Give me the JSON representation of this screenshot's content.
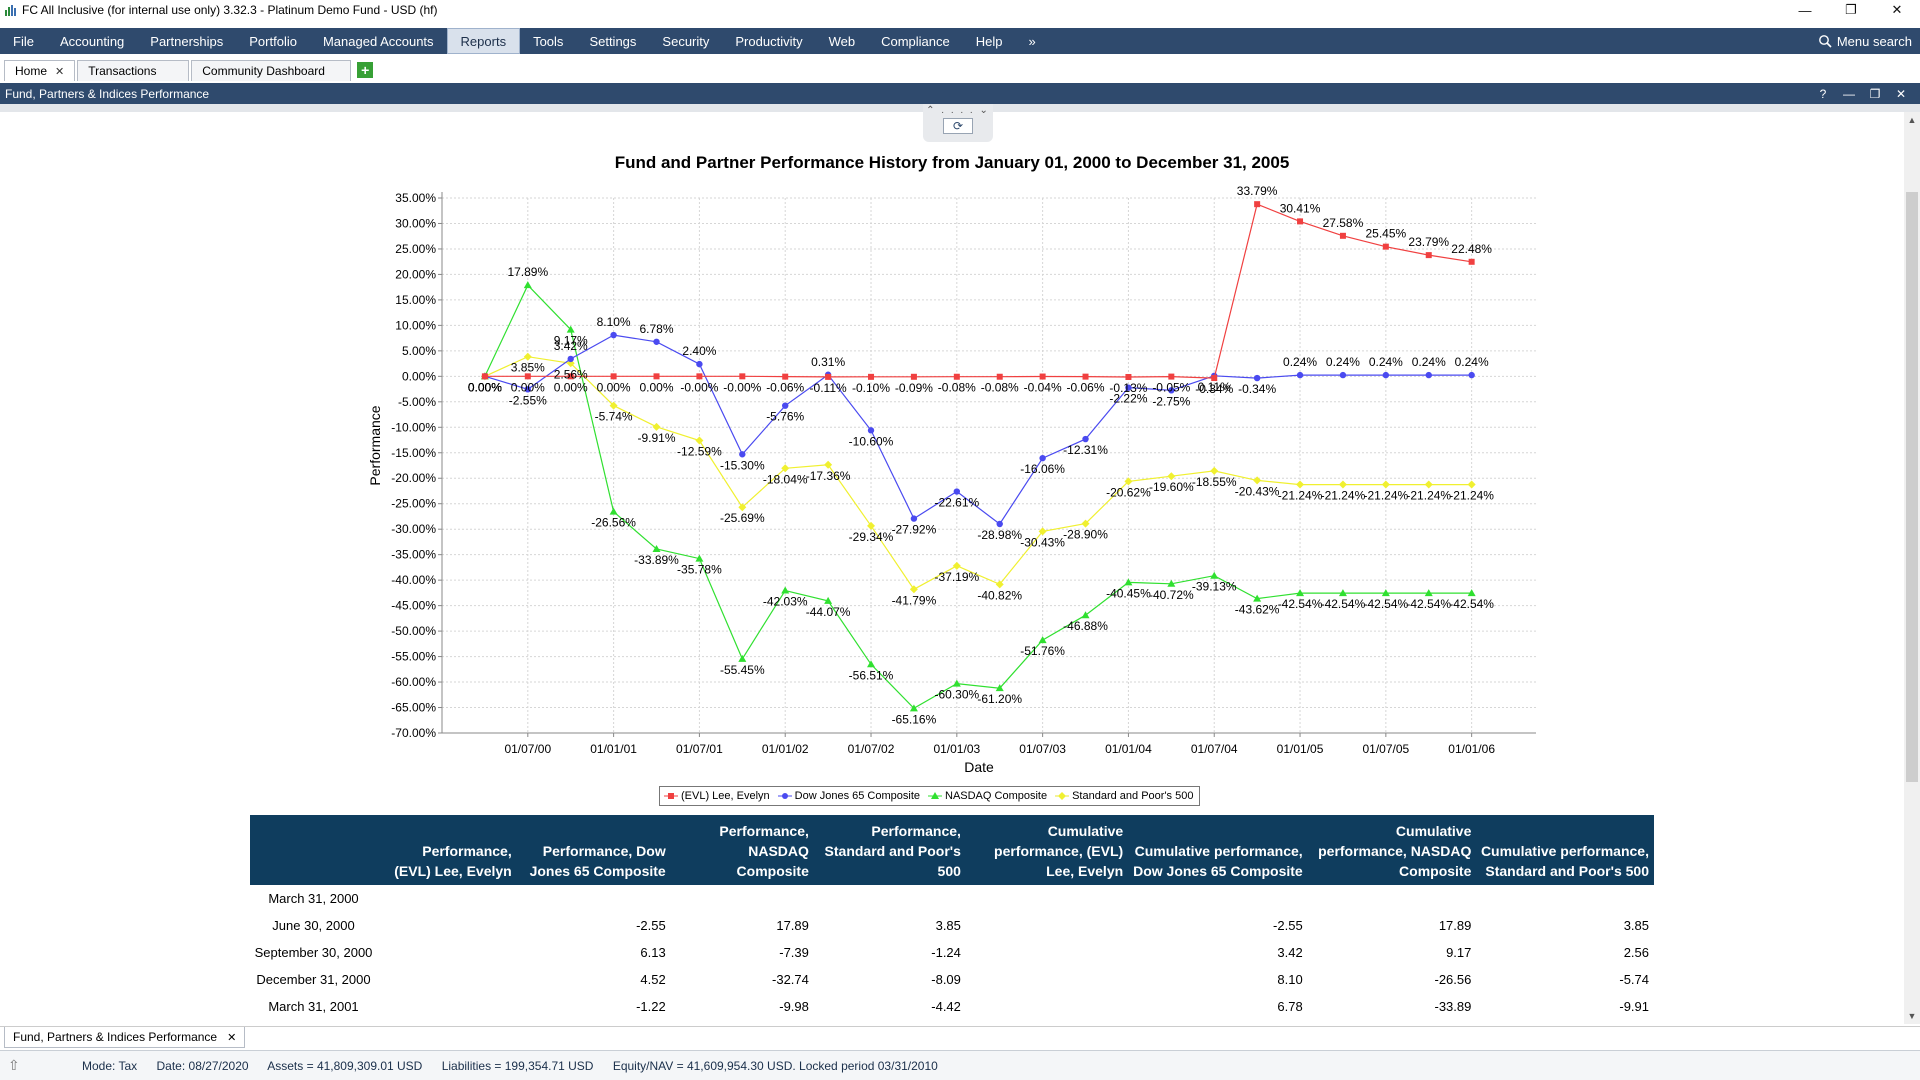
{
  "window": {
    "title": "FC All Inclusive (for internal use only) 3.32.3 - Platinum Demo Fund - USD (hf)",
    "minimize": "—",
    "maximize": "❐",
    "close": "✕"
  },
  "menu": {
    "items": [
      "File",
      "Accounting",
      "Partnerships",
      "Portfolio",
      "Managed Accounts",
      "Reports",
      "Tools",
      "Settings",
      "Security",
      "Productivity",
      "Web",
      "Compliance",
      "Help"
    ],
    "active": "Reports",
    "overflow": "»",
    "search_label": "Menu search"
  },
  "tabs": [
    {
      "label": "Home",
      "close": "✕"
    },
    {
      "label": "Transactions"
    },
    {
      "label": "Community Dashboard"
    }
  ],
  "tab_add": "+",
  "panel": {
    "title": "Fund,  Partners & Indices Performance",
    "help": "?",
    "minimize": "—",
    "restore": "❐",
    "close": "✕"
  },
  "splitter": {
    "arrows": "⌃ . . . . ⌄",
    "refresh": "⟳"
  },
  "chart_data": {
    "type": "line",
    "title": "Fund and Partner Performance History from January 01, 2000 to December 31, 2005",
    "xlabel": "Date",
    "ylabel": "Performance",
    "ylim": [
      -70,
      35
    ],
    "yticks": [
      "35.00%",
      "30.00%",
      "25.00%",
      "20.00%",
      "15.00%",
      "10.00%",
      "5.00%",
      "0.00%",
      "-5.00%",
      "-10.00%",
      "-15.00%",
      "-20.00%",
      "-25.00%",
      "-30.00%",
      "-35.00%",
      "-40.00%",
      "-45.00%",
      "-50.00%",
      "-55.00%",
      "-60.00%",
      "-65.00%",
      "-70.00%"
    ],
    "ytick_values": [
      35,
      30,
      25,
      20,
      15,
      10,
      5,
      0,
      -5,
      -10,
      -15,
      -20,
      -25,
      -30,
      -35,
      -40,
      -45,
      -50,
      -55,
      -60,
      -65,
      -70
    ],
    "xticks": [
      "01/07/00",
      "01/01/01",
      "01/07/01",
      "01/01/02",
      "01/07/02",
      "01/01/03",
      "01/07/03",
      "01/01/04",
      "01/07/04",
      "01/01/05",
      "01/07/05",
      "01/01/06"
    ],
    "xtick_positions": [
      1,
      3,
      5,
      7,
      9,
      11,
      13,
      15,
      17,
      19,
      21,
      23
    ],
    "xlim": [
      -1,
      24.5
    ],
    "x": [
      0,
      1,
      2,
      3,
      4,
      5,
      6,
      7,
      8,
      9,
      10,
      11,
      12,
      13,
      14,
      15,
      16,
      17,
      18,
      19,
      20,
      21,
      22,
      23
    ],
    "grid": true,
    "legend": "bottom-center",
    "series": [
      {
        "name": "(EVL) Lee, Evelyn",
        "color": "#f04040",
        "marker": "square",
        "values": [
          0,
          0,
          0,
          0,
          0,
          -0.0,
          -0.0,
          -0.06,
          -0.11,
          -0.1,
          -0.09,
          -0.08,
          -0.08,
          -0.04,
          -0.06,
          -0.13,
          -0.05,
          -0.34,
          33.79,
          30.41,
          27.58,
          25.45,
          23.79,
          22.48
        ],
        "labels": [
          "0.00%",
          "0.00%",
          "0.00%",
          "0.00%",
          "0.00%",
          "-0.00%",
          "-0.00%",
          "-0.06%",
          "-0.11%",
          "-0.10%",
          "-0.09%",
          "-0.08%",
          "-0.08%",
          "-0.04%",
          "-0.06%",
          "-0.13%",
          "-0.05%",
          "-0.34%",
          "33.79%",
          "30.41%",
          "27.58%",
          "25.45%",
          "23.79%",
          "22.48%"
        ]
      },
      {
        "name": "Dow Jones 65 Composite",
        "color": "#4a4af0",
        "marker": "circle",
        "values": [
          0,
          -2.55,
          3.42,
          8.1,
          6.78,
          2.4,
          -15.3,
          -5.76,
          0.31,
          -10.6,
          -27.92,
          -22.61,
          -28.98,
          -16.06,
          -12.31,
          -2.22,
          -2.75,
          0.11,
          -0.34,
          0.24,
          0.24,
          0.24,
          0.24,
          0.24
        ],
        "labels": [
          "0.00%",
          "-2.55%",
          "3.42%",
          "8.10%",
          "6.78%",
          "2.40%",
          "-15.30%",
          "-5.76%",
          "0.31%",
          "-10.60%",
          "-27.92%",
          "-22.61%",
          "-28.98%",
          "-16.06%",
          "-12.31%",
          "-2.22%",
          "-2.75%",
          "0.11%",
          "-0.34%",
          "0.24%",
          "0.24%",
          "0.24%",
          "0.24%",
          "0.24%"
        ]
      },
      {
        "name": "NASDAQ Composite",
        "color": "#30e030",
        "marker": "triangle",
        "values": [
          0,
          17.89,
          9.17,
          -26.56,
          -33.89,
          -35.78,
          -55.45,
          -42.03,
          -44.07,
          -56.51,
          -65.16,
          -60.3,
          -61.2,
          -51.76,
          -46.88,
          -40.45,
          -40.72,
          -39.13,
          -43.62,
          -42.54,
          -42.54,
          -42.54,
          -42.54,
          -42.54
        ],
        "labels": [
          "0.00%",
          "17.89%",
          "9.17%",
          "-26.56%",
          "-33.89%",
          "-35.78%",
          "-55.45%",
          "-42.03%",
          "-44.07%",
          "-56.51%",
          "-65.16%",
          "-60.30%",
          "-61.20%",
          "-51.76%",
          "-46.88%",
          "-40.45%",
          "-40.72%",
          "-39.13%",
          "-43.62%",
          "-42.54%",
          "-42.54%",
          "-42.54%",
          "-42.54%",
          "-42.54%"
        ]
      },
      {
        "name": "Standard and Poor's 500",
        "color": "#f0f030",
        "marker": "diamond",
        "values": [
          0,
          3.85,
          2.56,
          -5.74,
          -9.91,
          -12.59,
          -25.69,
          -18.04,
          -17.36,
          -29.34,
          -41.79,
          -37.19,
          -40.82,
          -30.43,
          -28.9,
          -20.62,
          -19.6,
          -18.55,
          -20.43,
          -21.24,
          -21.24,
          -21.24,
          -21.24,
          -21.24
        ],
        "labels": [
          "0.00%",
          "3.85%",
          "2.56%",
          "-5.74%",
          "-9.91%",
          "-12.59%",
          "-25.69%",
          "-18.04%",
          "-17.36%",
          "-29.34%",
          "-41.79%",
          "-37.19%",
          "-40.82%",
          "-30.43%",
          "-28.90%",
          "-20.62%",
          "-19.60%",
          "-18.55%",
          "-20.43%",
          "-21.24%",
          "-21.24%",
          "-21.24%",
          "-21.24%",
          "-21.24%"
        ]
      }
    ]
  },
  "table": {
    "headers": [
      "",
      "Performance, (EVL) Lee, Evelyn",
      "Performance, Dow Jones 65 Composite",
      "Performance, NASDAQ Composite",
      "Performance, Standard and Poor's 500",
      "Cumulative performance, (EVL) Lee, Evelyn",
      "Cumulative performance, Dow Jones 65 Composite",
      "Cumulative performance, NASDAQ Composite",
      "Cumulative performance, Standard and Poor's 500"
    ],
    "rows": [
      [
        "March 31, 2000",
        "",
        "",
        "",
        "",
        "",
        "",
        "",
        ""
      ],
      [
        "June 30, 2000",
        "",
        "-2.55",
        "17.89",
        "3.85",
        "",
        "-2.55",
        "17.89",
        "3.85"
      ],
      [
        "September 30, 2000",
        "",
        "6.13",
        "-7.39",
        "-1.24",
        "",
        "3.42",
        "9.17",
        "2.56"
      ],
      [
        "December 31, 2000",
        "",
        "4.52",
        "-32.74",
        "-8.09",
        "",
        "8.10",
        "-26.56",
        "-5.74"
      ],
      [
        "March 31, 2001",
        "",
        "-1.22",
        "-9.98",
        "-4.42",
        "",
        "6.78",
        "-33.89",
        "-9.91"
      ]
    ]
  },
  "bottom_tab": {
    "label": "Fund,  Partners & Indices Performance",
    "close": "✕"
  },
  "status": {
    "mode": "Mode: Tax",
    "date": "Date: 08/27/2020",
    "assets": "Assets = 41,809,309.01 USD",
    "liabilities": "Liabilities = 199,354.71 USD",
    "equity": "Equity/NAV = 41,609,954.30 USD. Locked period 03/31/2010"
  }
}
